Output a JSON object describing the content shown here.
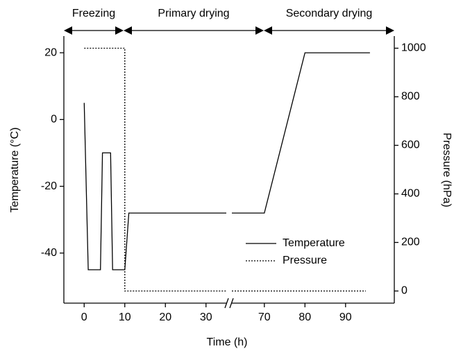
{
  "chart_data": {
    "type": "line",
    "xlabel": "Time (h)",
    "ylabel": "Temperature (°C)",
    "y2label": "Pressure (hPa)",
    "annotations": [
      "Freezing",
      "Primary drying",
      "Secondary drying"
    ],
    "xlim": [
      -5,
      102
    ],
    "xbreak": [
      35,
      62
    ],
    "xticks": [
      0,
      10,
      20,
      30,
      70,
      80,
      90
    ],
    "ylim": [
      -55,
      25
    ],
    "yticks": [
      -40,
      -20,
      0,
      20
    ],
    "y2lim": [
      -50,
      1050
    ],
    "y2ticks": [
      0,
      200,
      400,
      600,
      800,
      1000
    ],
    "legend": "center-right",
    "series": [
      {
        "name": "Temperature",
        "color": "#000000",
        "style": "solid",
        "x": [
          0,
          1,
          4,
          4.5,
          6.5,
          7,
          10,
          11,
          35,
          null,
          62,
          70,
          80,
          96
        ],
        "values": [
          5,
          -45,
          -45,
          -10,
          -10,
          -45,
          -45,
          -28,
          -28,
          null,
          -28,
          -28,
          20,
          20
        ]
      },
      {
        "name": "Pressure",
        "color": "#000000",
        "style": "dotted",
        "axis": "y2",
        "x": [
          0,
          10,
          10,
          35,
          null,
          62,
          95
        ],
        "values": [
          1000,
          1000,
          0,
          0,
          null,
          0,
          0
        ]
      }
    ]
  }
}
